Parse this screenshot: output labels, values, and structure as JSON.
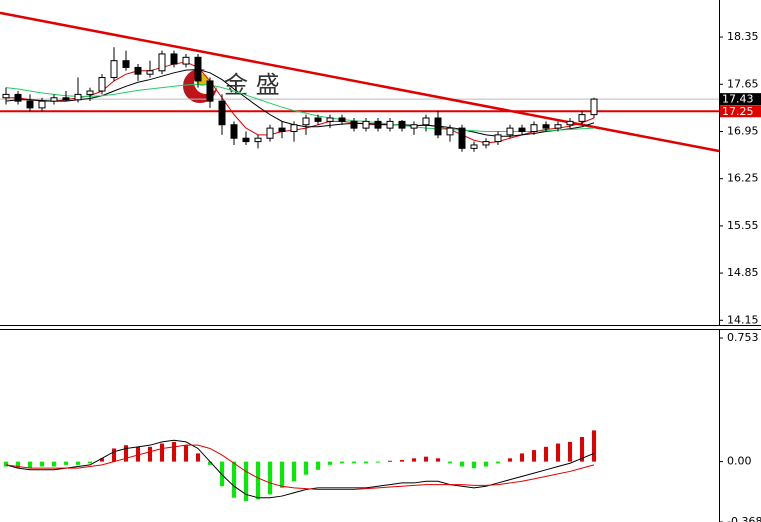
{
  "chart_data": [
    {
      "type": "candlestick",
      "watermark": "金 盛",
      "ylim": [
        14.08,
        18.9
      ],
      "yticks": [
        18.35,
        17.65,
        16.95,
        16.25,
        15.55,
        14.85,
        14.15
      ],
      "ohlc": [
        [
          17.45,
          17.6,
          17.35,
          17.5
        ],
        [
          17.5,
          17.55,
          17.35,
          17.4
        ],
        [
          17.4,
          17.5,
          17.25,
          17.3
        ],
        [
          17.3,
          17.45,
          17.25,
          17.4
        ],
        [
          17.4,
          17.5,
          17.35,
          17.45
        ],
        [
          17.45,
          17.55,
          17.4,
          17.42
        ],
        [
          17.42,
          17.75,
          17.38,
          17.5
        ],
        [
          17.5,
          17.6,
          17.4,
          17.55
        ],
        [
          17.55,
          17.8,
          17.5,
          17.75
        ],
        [
          17.75,
          18.2,
          17.7,
          18.0
        ],
        [
          18.0,
          18.15,
          17.85,
          17.9
        ],
        [
          17.9,
          17.95,
          17.7,
          17.8
        ],
        [
          17.8,
          18.0,
          17.75,
          17.85
        ],
        [
          17.85,
          18.15,
          17.8,
          18.1
        ],
        [
          18.1,
          18.15,
          17.9,
          17.95
        ],
        [
          17.95,
          18.1,
          17.9,
          18.05
        ],
        [
          18.05,
          18.1,
          17.6,
          17.7
        ],
        [
          17.7,
          17.75,
          17.3,
          17.4
        ],
        [
          17.4,
          17.5,
          16.9,
          17.05
        ],
        [
          17.05,
          17.1,
          16.75,
          16.85
        ],
        [
          16.85,
          16.95,
          16.75,
          16.8
        ],
        [
          16.8,
          16.9,
          16.7,
          16.85
        ],
        [
          16.85,
          17.05,
          16.8,
          17.0
        ],
        [
          17.0,
          17.1,
          16.85,
          16.95
        ],
        [
          16.95,
          17.1,
          16.8,
          17.05
        ],
        [
          17.05,
          17.2,
          16.9,
          17.15
        ],
        [
          17.15,
          17.2,
          17.05,
          17.1
        ],
        [
          17.1,
          17.2,
          17.0,
          17.15
        ],
        [
          17.15,
          17.2,
          17.05,
          17.1
        ],
        [
          17.1,
          17.15,
          16.95,
          17.0
        ],
        [
          17.0,
          17.15,
          16.95,
          17.1
        ],
        [
          17.1,
          17.15,
          16.95,
          17.0
        ],
        [
          17.0,
          17.15,
          16.95,
          17.1
        ],
        [
          17.1,
          17.12,
          16.95,
          17.0
        ],
        [
          17.0,
          17.1,
          16.9,
          17.05
        ],
        [
          17.05,
          17.2,
          16.95,
          17.15
        ],
        [
          17.15,
          17.25,
          16.85,
          16.9
        ],
        [
          16.9,
          17.05,
          16.8,
          17.0
        ],
        [
          17.0,
          17.05,
          16.65,
          16.7
        ],
        [
          16.7,
          16.8,
          16.65,
          16.75
        ],
        [
          16.75,
          16.85,
          16.7,
          16.8
        ],
        [
          16.8,
          16.95,
          16.75,
          16.9
        ],
        [
          16.9,
          17.05,
          16.85,
          17.0
        ],
        [
          17.0,
          17.05,
          16.9,
          16.95
        ],
        [
          16.95,
          17.1,
          16.9,
          17.05
        ],
        [
          17.05,
          17.1,
          16.95,
          17.0
        ],
        [
          17.0,
          17.1,
          16.95,
          17.05
        ],
        [
          17.05,
          17.15,
          17.0,
          17.1
        ],
        [
          17.1,
          17.25,
          17.05,
          17.2
        ],
        [
          17.2,
          17.45,
          17.15,
          17.43
        ]
      ],
      "series": [
        {
          "color": "#e00000",
          "values": [
            17.45,
            17.45,
            17.42,
            17.4,
            17.4,
            17.42,
            17.45,
            17.48,
            17.55,
            17.7,
            17.8,
            17.85,
            17.85,
            17.9,
            17.95,
            17.98,
            17.9,
            17.7,
            17.45,
            17.2,
            17.0,
            16.9,
            16.9,
            16.95,
            16.97,
            17.0,
            17.05,
            17.1,
            17.1,
            17.08,
            17.06,
            17.05,
            17.05,
            17.05,
            17.03,
            17.05,
            17.02,
            16.98,
            16.9,
            16.82,
            16.78,
            16.8,
            16.85,
            16.9,
            16.95,
            16.98,
            17.0,
            17.03,
            17.08,
            17.15
          ]
        },
        {
          "color": "#000000",
          "values": [
            17.4,
            17.42,
            17.42,
            17.41,
            17.4,
            17.4,
            17.42,
            17.44,
            17.48,
            17.55,
            17.62,
            17.68,
            17.72,
            17.77,
            17.82,
            17.86,
            17.87,
            17.82,
            17.72,
            17.58,
            17.45,
            17.32,
            17.2,
            17.1,
            17.05,
            17.02,
            17.02,
            17.04,
            17.06,
            17.07,
            17.07,
            17.06,
            17.05,
            17.05,
            17.04,
            17.04,
            17.03,
            17.01,
            16.98,
            16.94,
            16.9,
            16.88,
            16.88,
            16.9,
            16.92,
            16.95,
            16.97,
            16.99,
            17.02,
            17.08
          ]
        },
        {
          "color": "#22cc66",
          "values": [
            17.6,
            17.58,
            17.55,
            17.52,
            17.5,
            17.48,
            17.47,
            17.47,
            17.48,
            17.5,
            17.53,
            17.56,
            17.58,
            17.6,
            17.62,
            17.64,
            17.65,
            17.64,
            17.6,
            17.55,
            17.49,
            17.43,
            17.37,
            17.31,
            17.26,
            17.22,
            17.18,
            17.15,
            17.13,
            17.11,
            17.1,
            17.08,
            17.06,
            17.04,
            17.02,
            17.0,
            16.99,
            16.98,
            16.97,
            16.96,
            16.95,
            16.95,
            16.95,
            16.95,
            16.95,
            16.96,
            16.97,
            16.98,
            16.99,
            17.0
          ]
        }
      ],
      "trendline": {
        "start": 18.71,
        "end": 16.66,
        "color": "#e00000"
      },
      "hline": {
        "value": 17.25,
        "color": "#e00000"
      },
      "price_markers": [
        {
          "value": 17.43,
          "color": "#000000"
        },
        {
          "value": 17.25,
          "color": "#e00000"
        }
      ]
    },
    {
      "type": "macd",
      "ylim": [
        -0.368,
        0.753
      ],
      "yticks": [
        0.753,
        {
          "value": 0,
          "label": "0.00"
        },
        -0.368
      ],
      "up_color": "#e00000",
      "down_color": "#00ee00",
      "values": [
        -0.03,
        -0.04,
        -0.04,
        -0.03,
        -0.03,
        -0.02,
        -0.02,
        -0.01,
        0.02,
        0.08,
        0.1,
        0.09,
        0.09,
        0.11,
        0.12,
        0.1,
        0.05,
        -0.02,
        -0.15,
        -0.22,
        -0.24,
        -0.23,
        -0.2,
        -0.16,
        -0.12,
        -0.08,
        -0.05,
        -0.02,
        -0.01,
        -0.01,
        -0.01,
        -0.005,
        0.005,
        0.01,
        0.02,
        0.03,
        0.02,
        -0.01,
        -0.03,
        -0.04,
        -0.03,
        -0.01,
        0.02,
        0.05,
        0.07,
        0.09,
        0.11,
        0.12,
        0.15,
        0.19
      ],
      "series": [
        {
          "color": "#000000",
          "values": [
            -0.02,
            -0.04,
            -0.05,
            -0.05,
            -0.05,
            -0.04,
            -0.03,
            -0.02,
            0.02,
            0.06,
            0.08,
            0.09,
            0.1,
            0.12,
            0.13,
            0.12,
            0.08,
            0.0,
            -0.08,
            -0.15,
            -0.2,
            -0.22,
            -0.22,
            -0.21,
            -0.19,
            -0.17,
            -0.16,
            -0.16,
            -0.16,
            -0.16,
            -0.16,
            -0.15,
            -0.14,
            -0.13,
            -0.13,
            -0.12,
            -0.12,
            -0.14,
            -0.15,
            -0.16,
            -0.15,
            -0.13,
            -0.11,
            -0.09,
            -0.07,
            -0.05,
            -0.03,
            -0.01,
            0.02,
            0.05
          ]
        },
        {
          "color": "#e00000",
          "values": [
            -0.02,
            -0.03,
            -0.04,
            -0.04,
            -0.04,
            -0.04,
            -0.04,
            -0.03,
            -0.02,
            0.0,
            0.02,
            0.04,
            0.06,
            0.08,
            0.09,
            0.1,
            0.1,
            0.08,
            0.04,
            -0.01,
            -0.06,
            -0.1,
            -0.13,
            -0.15,
            -0.16,
            -0.165,
            -0.17,
            -0.17,
            -0.17,
            -0.17,
            -0.165,
            -0.16,
            -0.155,
            -0.15,
            -0.145,
            -0.14,
            -0.14,
            -0.14,
            -0.14,
            -0.145,
            -0.145,
            -0.14,
            -0.13,
            -0.12,
            -0.105,
            -0.09,
            -0.075,
            -0.06,
            -0.04,
            -0.02
          ]
        }
      ]
    }
  ]
}
